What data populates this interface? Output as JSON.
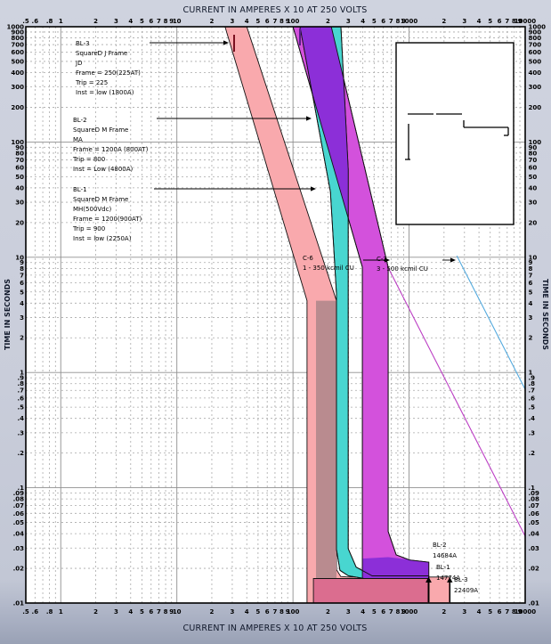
{
  "titles": {
    "top": "CURRENT IN AMPERES X 10 AT 250 VOLTS",
    "bottom": "CURRENT IN AMPERES X 10 AT 250 VOLTS",
    "left": "TIME IN SECONDS",
    "right": "TIME IN SECONDS"
  },
  "axes": {
    "x": {
      "min": 0.5,
      "max": 10000,
      "ticks": [
        {
          "v": 0.5,
          "l": ".5"
        },
        {
          "v": 0.6,
          "l": ".6"
        },
        {
          "v": 0.7,
          "l": ""
        },
        {
          "v": 0.8,
          "l": ".8"
        },
        {
          "v": 0.9,
          "l": ""
        },
        {
          "v": 1,
          "l": "1",
          "m": 1
        },
        {
          "v": 2,
          "l": "2"
        },
        {
          "v": 3,
          "l": "3"
        },
        {
          "v": 4,
          "l": "4"
        },
        {
          "v": 5,
          "l": "5"
        },
        {
          "v": 6,
          "l": "6"
        },
        {
          "v": 7,
          "l": "7"
        },
        {
          "v": 8,
          "l": "8"
        },
        {
          "v": 9,
          "l": "9"
        },
        {
          "v": 10,
          "l": "10",
          "m": 1
        },
        {
          "v": 20,
          "l": "2"
        },
        {
          "v": 30,
          "l": "3"
        },
        {
          "v": 40,
          "l": "4"
        },
        {
          "v": 50,
          "l": "5"
        },
        {
          "v": 60,
          "l": "6"
        },
        {
          "v": 70,
          "l": "7"
        },
        {
          "v": 80,
          "l": "8"
        },
        {
          "v": 90,
          "l": "9"
        },
        {
          "v": 100,
          "l": "100",
          "m": 1
        },
        {
          "v": 200,
          "l": "2"
        },
        {
          "v": 300,
          "l": "3"
        },
        {
          "v": 400,
          "l": "4"
        },
        {
          "v": 500,
          "l": "5"
        },
        {
          "v": 600,
          "l": "6"
        },
        {
          "v": 700,
          "l": "7"
        },
        {
          "v": 800,
          "l": "8"
        },
        {
          "v": 900,
          "l": "9"
        },
        {
          "v": 1000,
          "l": "1000",
          "m": 1
        },
        {
          "v": 2000,
          "l": "2"
        },
        {
          "v": 3000,
          "l": "3"
        },
        {
          "v": 4000,
          "l": "4"
        },
        {
          "v": 5000,
          "l": "5"
        },
        {
          "v": 6000,
          "l": "6"
        },
        {
          "v": 7000,
          "l": "7"
        },
        {
          "v": 8000,
          "l": "8"
        },
        {
          "v": 9000,
          "l": "9"
        },
        {
          "v": 10000,
          "l": "10000"
        }
      ]
    },
    "y": {
      "min": 0.01,
      "max": 1000,
      "ticks": [
        {
          "v": 1000,
          "l": "1000"
        },
        {
          "v": 900,
          "l": "900"
        },
        {
          "v": 800,
          "l": "800"
        },
        {
          "v": 700,
          "l": "700"
        },
        {
          "v": 600,
          "l": "600"
        },
        {
          "v": 500,
          "l": "500"
        },
        {
          "v": 400,
          "l": "400"
        },
        {
          "v": 300,
          "l": "300"
        },
        {
          "v": 200,
          "l": "200"
        },
        {
          "v": 100,
          "l": "100",
          "m": 1
        },
        {
          "v": 90,
          "l": "90"
        },
        {
          "v": 80,
          "l": "80"
        },
        {
          "v": 70,
          "l": "70"
        },
        {
          "v": 60,
          "l": "60"
        },
        {
          "v": 50,
          "l": "50"
        },
        {
          "v": 40,
          "l": "40"
        },
        {
          "v": 30,
          "l": "30"
        },
        {
          "v": 20,
          "l": "20"
        },
        {
          "v": 10,
          "l": "10",
          "m": 1
        },
        {
          "v": 9,
          "l": "9"
        },
        {
          "v": 8,
          "l": "8"
        },
        {
          "v": 7,
          "l": "7"
        },
        {
          "v": 6,
          "l": "6"
        },
        {
          "v": 5,
          "l": "5"
        },
        {
          "v": 4,
          "l": "4"
        },
        {
          "v": 3,
          "l": "3"
        },
        {
          "v": 2,
          "l": "2"
        },
        {
          "v": 1,
          "l": "1",
          "m": 1
        },
        {
          "v": 0.9,
          "l": ".9"
        },
        {
          "v": 0.8,
          "l": ".8"
        },
        {
          "v": 0.7,
          "l": ".7"
        },
        {
          "v": 0.6,
          "l": ".6"
        },
        {
          "v": 0.5,
          "l": ".5"
        },
        {
          "v": 0.4,
          "l": ".4"
        },
        {
          "v": 0.3,
          "l": ".3"
        },
        {
          "v": 0.2,
          "l": ".2"
        },
        {
          "v": 0.1,
          "l": ".1",
          "m": 1
        },
        {
          "v": 0.09,
          "l": ".09"
        },
        {
          "v": 0.08,
          "l": ".08"
        },
        {
          "v": 0.07,
          "l": ".07"
        },
        {
          "v": 0.06,
          "l": ".06"
        },
        {
          "v": 0.05,
          "l": ".05"
        },
        {
          "v": 0.04,
          "l": ".04"
        },
        {
          "v": 0.03,
          "l": ".03"
        },
        {
          "v": 0.02,
          "l": ".02"
        },
        {
          "v": 0.01,
          "l": ".01"
        }
      ]
    }
  },
  "annotations": {
    "bl3": {
      "lines": [
        "BL-3",
        "SquareD J Frame",
        "JD",
        "Frame = 250(225AT)",
        "Trip = 225",
        "Inst = low (1800A)"
      ]
    },
    "bl2": {
      "lines": [
        "BL-2",
        "SquareD M Frame",
        "MA",
        "Frame = 1200A (800AT)",
        "Trip = 800",
        "Inst = Low (4800A)"
      ]
    },
    "bl1": {
      "lines": [
        "BL-1",
        "SquareD M Frame",
        "MH(500Vdc)",
        "Frame = 1200(900AT)",
        "Trip = 900",
        "Inst = low (2250A)"
      ]
    },
    "c6": {
      "lines": [
        "C-6",
        "1 - 350 kcmil CU"
      ]
    },
    "c2": {
      "lines": [
        "C-2",
        "3 - 500 kcmil CU"
      ]
    },
    "fault_bl2": {
      "lines": [
        "BL-2",
        "14684A"
      ]
    },
    "fault_bl1": {
      "lines": [
        "BL-1",
        "14774A"
      ]
    },
    "fault_bl3": {
      "lines": [
        "BL-3",
        "22409A"
      ]
    }
  },
  "colors": {
    "bl3_band": "#F9A9AD",
    "bl1_bl3_overlap": "#B98B8F",
    "bl1_rose": "#DB6D8F",
    "bl2_band": "#D351DC",
    "bl1_band": "#48D6D0",
    "bl2_inst_overlap": "#8C2FD8",
    "c6_line": "#54AADE",
    "c2_line": "#BC3FC4",
    "bl3_top_tick": "#7A1020",
    "bl2_top_tick": "#5A1E8A",
    "grid_minor": "#A9A9A9",
    "grid_major": "#8F8F8F",
    "margin_bg": "#C9CDDA"
  },
  "chart_data": {
    "type": "area",
    "description": "Time-current coordination curves (log-log). X = current in amperes x10 at 250 V, Y = time in seconds.",
    "xlabel": "CURRENT IN AMPERES X 10 AT 250 VOLTS",
    "ylabel": "TIME IN SECONDS",
    "xlim": [
      0.5,
      10000
    ],
    "ylim": [
      0.01,
      1000
    ],
    "grid": true,
    "series": [
      {
        "name": "bl3-band",
        "kind": "band",
        "color": "#F9A9AD",
        "points": [
          [
            26,
            1000
          ],
          [
            40,
            1000
          ],
          [
            237,
            4.2
          ],
          [
            237,
            0.0195
          ],
          [
            258,
            0.017
          ],
          [
            300,
            0.0168
          ],
          [
            2241,
            0.0168
          ],
          [
            2241,
            0.01
          ],
          [
            132,
            0.01
          ],
          [
            132,
            4.2
          ]
        ]
      },
      {
        "name": "bl1-bl3-overlap",
        "kind": "fill",
        "color": "#B98B8F",
        "points": [
          [
            158,
            4.2
          ],
          [
            237,
            4.2
          ],
          [
            237,
            0.0163
          ],
          [
            158,
            0.0163
          ]
        ]
      },
      {
        "name": "bl1-rose-band",
        "kind": "band",
        "color": "#DB6D8F",
        "points": [
          [
            150,
            0.0163
          ],
          [
            1477,
            0.0163
          ],
          [
            1477,
            0.01
          ],
          [
            150,
            0.01
          ]
        ]
      },
      {
        "name": "bl2-band",
        "kind": "band",
        "color": "#D351DC",
        "points": [
          [
            100,
            1000
          ],
          [
            214,
            1000
          ],
          [
            661,
            8.2
          ],
          [
            661,
            0.0417
          ],
          [
            775,
            0.0262
          ],
          [
            1010,
            0.0236
          ],
          [
            1477,
            0.0226
          ],
          [
            1477,
            0.0163
          ],
          [
            396,
            0.0163
          ],
          [
            396,
            8.2
          ]
        ]
      },
      {
        "name": "bl1-band",
        "kind": "band",
        "color": "#48D6D0",
        "points": [
          [
            115,
            1000
          ],
          [
            259,
            1000
          ],
          [
            299,
            58
          ],
          [
            299,
            0.0296
          ],
          [
            350,
            0.0205
          ],
          [
            481,
            0.0172
          ],
          [
            1477,
            0.0172
          ],
          [
            1477,
            0.0163
          ],
          [
            410,
            0.0163
          ],
          [
            300,
            0.0172
          ],
          [
            254,
            0.0192
          ],
          [
            237,
            0.0292
          ],
          [
            237,
            4.8
          ],
          [
            210,
            37
          ]
        ]
      },
      {
        "name": "bl2-bl1-overlap-top",
        "kind": "fill",
        "color": "#8C2FD8",
        "points": [
          [
            115,
            1000
          ],
          [
            214,
            1000
          ],
          [
            273,
            350
          ],
          [
            299,
            58
          ],
          [
            299,
            22
          ],
          [
            147,
            259
          ]
        ]
      },
      {
        "name": "bl2-inst-overlap",
        "kind": "fill",
        "color": "#8C2FD8",
        "points": [
          [
            396,
            0.0163
          ],
          [
            396,
            0.0243
          ],
          [
            661,
            0.025
          ],
          [
            1010,
            0.0238
          ],
          [
            1477,
            0.0226
          ],
          [
            1477,
            0.0163
          ]
        ]
      },
      {
        "name": "c6-damage-line",
        "kind": "line",
        "color": "#54AADE",
        "points": [
          [
            2576,
            10.3
          ],
          [
            10000,
            0.715
          ]
        ]
      },
      {
        "name": "c2-damage-line",
        "kind": "line",
        "color": "#BC3FC4",
        "points": [
          [
            594,
            10
          ],
          [
            10000,
            0.038
          ]
        ]
      }
    ],
    "fault_markers": [
      {
        "name": "BL-2",
        "amperes": 14684,
        "v": 1468.4
      },
      {
        "name": "BL-1",
        "amperes": 14774,
        "v": 1477.4
      },
      {
        "name": "BL-3",
        "amperes": 22409,
        "v": 2240.9
      }
    ]
  }
}
